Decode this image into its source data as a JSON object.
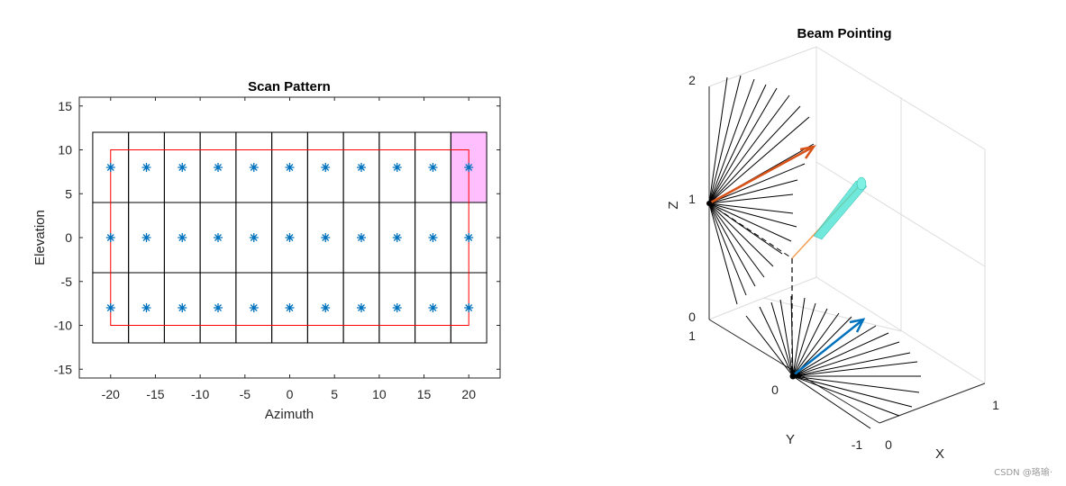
{
  "chart_data": [
    {
      "type": "scatter",
      "title": "Scan Pattern",
      "xlabel": "Azimuth",
      "ylabel": "Elevation",
      "xlim": [
        -23.5,
        23.5
      ],
      "ylim": [
        -16,
        16
      ],
      "xticks": [
        -20,
        -15,
        -10,
        -5,
        0,
        5,
        10,
        15,
        20
      ],
      "yticks": [
        -15,
        -10,
        -5,
        0,
        5,
        10,
        15
      ],
      "scan_points": {
        "azimuth": [
          -20,
          -16,
          -12,
          -8,
          -4,
          0,
          4,
          8,
          12,
          16,
          20
        ],
        "elevation": [
          8,
          0,
          -8
        ],
        "marker": "*",
        "color": "#0072bd"
      },
      "beam_cells": {
        "azimuth_edges": [
          -22,
          -18,
          -14,
          -10,
          -6,
          -2,
          2,
          6,
          10,
          14,
          18,
          22
        ],
        "elevation_edges": [
          -12,
          -4,
          4,
          12
        ],
        "color": "#000000"
      },
      "scan_limits": {
        "azimuth": [
          -20,
          20
        ],
        "elevation": [
          -10,
          10
        ],
        "color": "#ff0000"
      },
      "current_beam": {
        "azimuth": [
          18,
          22
        ],
        "elevation": [
          4,
          12
        ],
        "color": "#ff00ff"
      }
    },
    {
      "type": "3d-line",
      "title": "Beam Pointing",
      "xlabel": "X",
      "ylabel": "Y",
      "zlabel": "Z",
      "xlim": [
        0,
        1
      ],
      "ylim": [
        -1,
        1
      ],
      "zlim": [
        0,
        2
      ],
      "xticks": [
        "0",
        "1"
      ],
      "yticks": [
        "-1",
        "0",
        "1"
      ],
      "zticks": [
        "0",
        "1",
        "2"
      ],
      "colors": {
        "projection_lines": "#000000",
        "azimuth_arrow": "#0072bd",
        "elevation_arrow": "#d95319",
        "beam_cone": "#40e0d0",
        "beam_direction": "#f5a25d"
      }
    }
  ],
  "watermark": "CSDN @珞瑜·"
}
